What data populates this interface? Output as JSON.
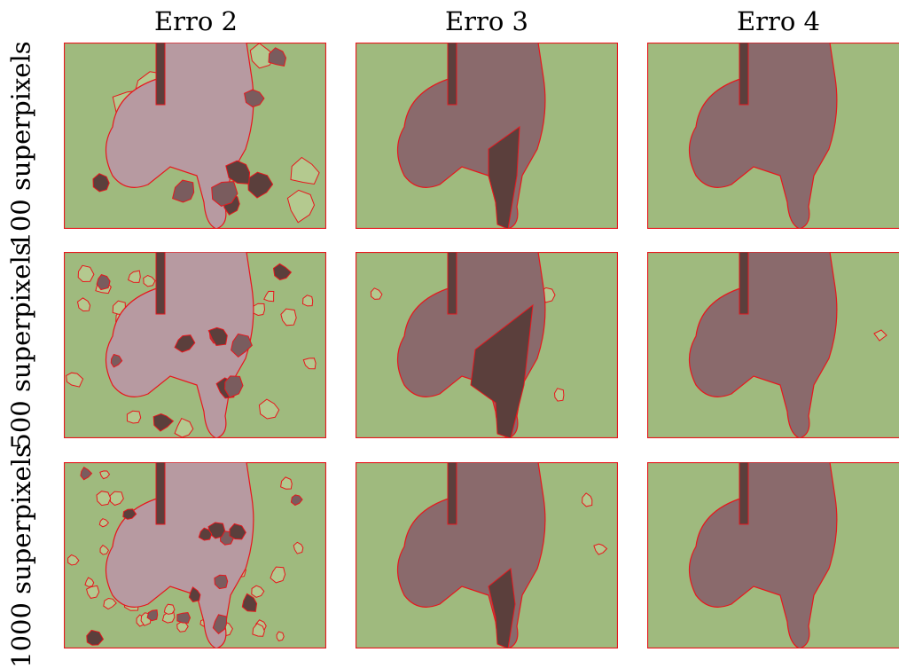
{
  "columns": [
    {
      "id": "c1",
      "title": "Erro 2"
    },
    {
      "id": "c2",
      "title": "Erro 3"
    },
    {
      "id": "c3",
      "title": "Erro 4"
    }
  ],
  "rows": [
    {
      "id": "r1",
      "label": "100 superpixels"
    },
    {
      "id": "r2",
      "label": "500 superpixels"
    },
    {
      "id": "r3",
      "label": "1000 superpixels"
    }
  ],
  "colors": {
    "background_region": "#9fba7e",
    "object_region": "#8a6a6c",
    "object_light": "#b79aa1",
    "object_dark": "#5b3f3c",
    "boundary": "#e8161c"
  }
}
